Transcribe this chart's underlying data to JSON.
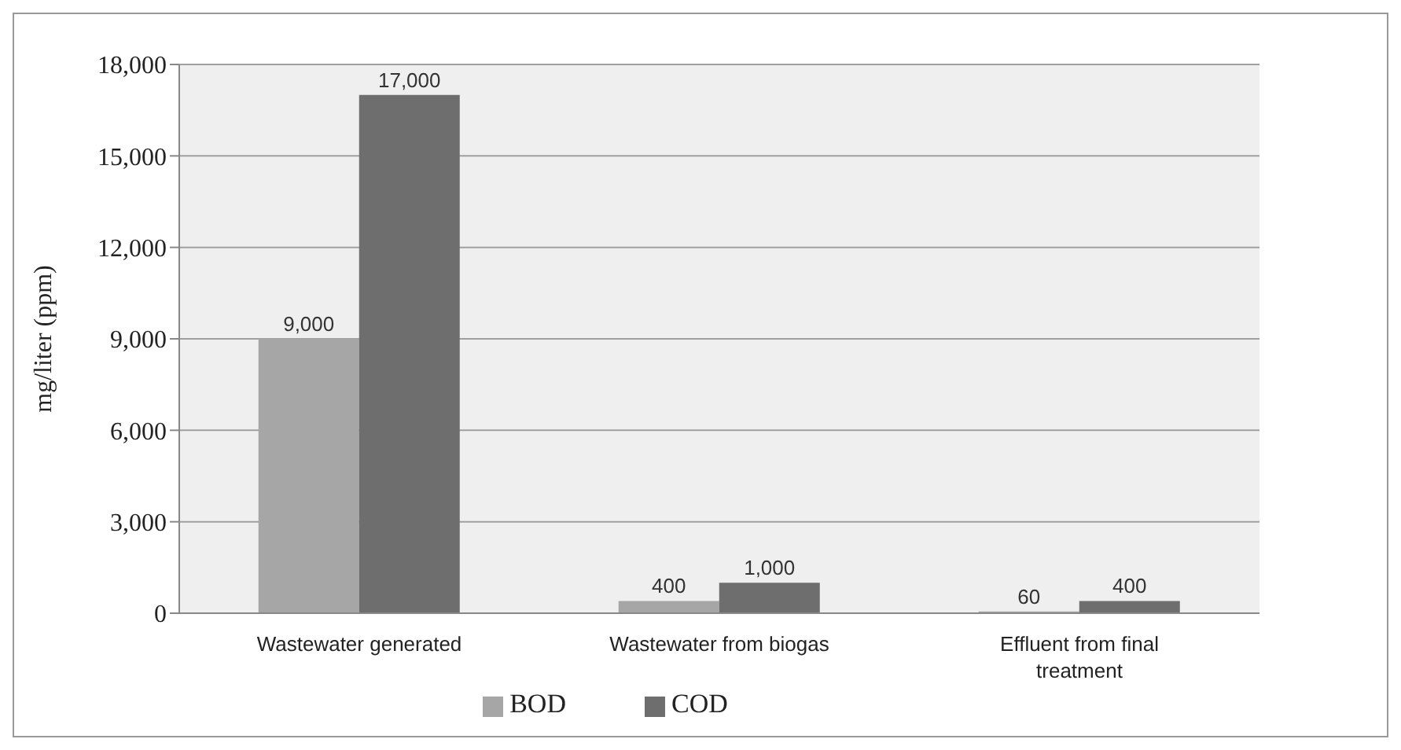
{
  "chart_data": {
    "type": "bar",
    "ylabel": "mg/liter (ppm)",
    "categories": [
      "Wastewater generated",
      "Wastewater from biogas",
      "Effluent from final treatment"
    ],
    "series": [
      {
        "name": "BOD",
        "color": "#a6a6a6",
        "values": [
          9000,
          400,
          60
        ],
        "value_labels": [
          "9,000",
          "400",
          "60"
        ]
      },
      {
        "name": "COD",
        "color": "#6e6e6e",
        "values": [
          17000,
          1000,
          400
        ],
        "value_labels": [
          "17,000",
          "1,000",
          "400"
        ]
      }
    ],
    "ylim": [
      0,
      18000
    ],
    "yticks": [
      {
        "value": 0,
        "label": "0"
      },
      {
        "value": 3000,
        "label": "3,000"
      },
      {
        "value": 6000,
        "label": "6,000"
      },
      {
        "value": 9000,
        "label": "9,000"
      },
      {
        "value": 12000,
        "label": "12,000"
      },
      {
        "value": 15000,
        "label": "15,000"
      },
      {
        "value": 18000,
        "label": "18,000"
      }
    ],
    "grid": "y",
    "legend": "bottom"
  }
}
